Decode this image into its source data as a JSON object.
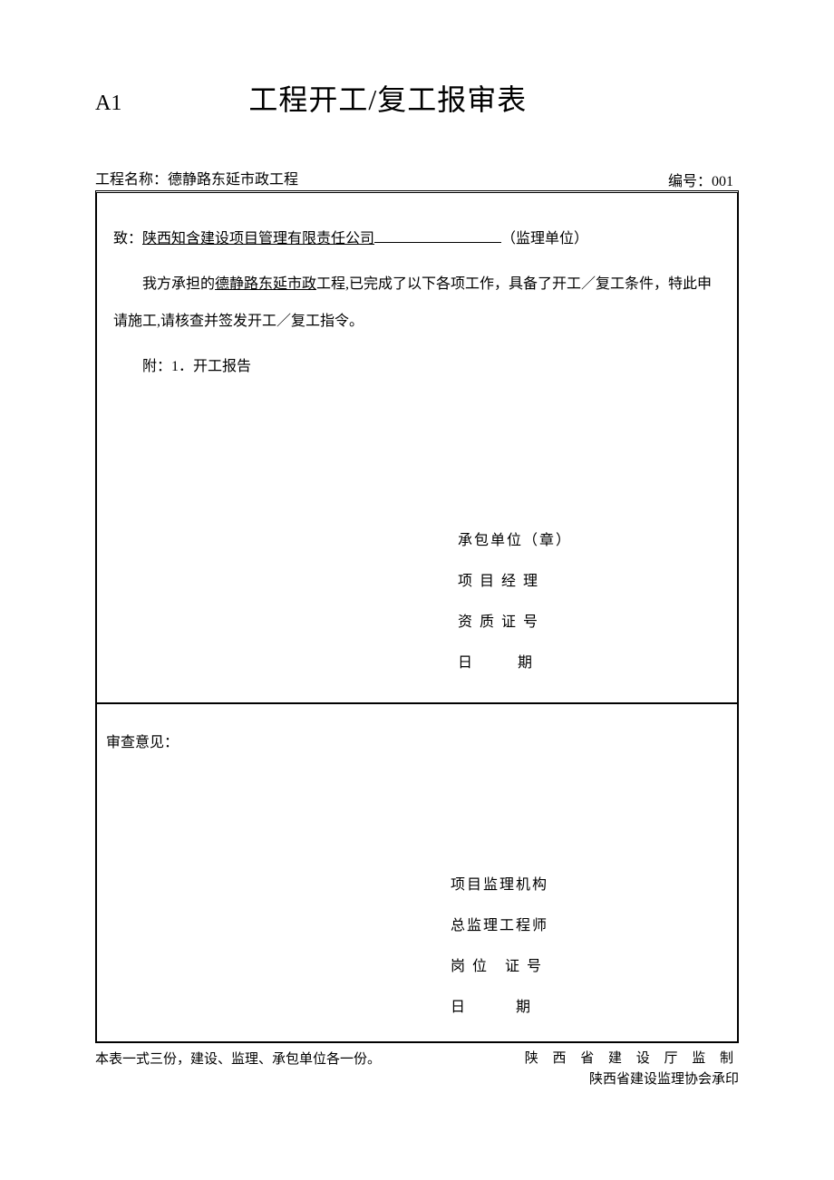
{
  "form_code": "A1",
  "title": "工程开工/复工报审表",
  "project_label": "工程名称：",
  "project_name": "德静路东延市政工程",
  "doc_number_label": "编号：",
  "doc_number": "001",
  "to_label": "致：",
  "supervisor_company": "陕西知含建设项目管理有限责任公司",
  "supervisor_suffix": "（监理单位）",
  "body_prefix": "我方承担的",
  "underlined_project": "德静路东延市政",
  "body_suffix": "工程,已完成了以下各项工作，具备了开工／复工条件，特此申请施工,请核查并签发开工／复工指令。",
  "attachment": "附：1．开工报告",
  "sig_top": {
    "line1": "承包单位（章）",
    "line2": "项 目 经 理",
    "line3": "资 质 证 号",
    "line4_a": "日",
    "line4_b": "期"
  },
  "review_label": "审查意见：",
  "sig_bottom": {
    "line1": "项目监理机构",
    "line2": "总监理工程师",
    "line3": "岗 位　证 号",
    "line4_a": "日",
    "line4_b": "期"
  },
  "footer_left": "本表一式三份，建设、监理、承包单位各一份。",
  "footer_right1": "陕 西 省 建 设 厅 监 制",
  "footer_right2": "陕西省建设监理协会承印"
}
